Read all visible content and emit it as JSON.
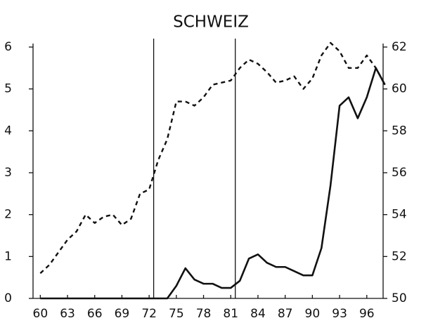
{
  "chart_data": {
    "type": "line",
    "title": "SCHWEIZ",
    "x": [
      60,
      61,
      62,
      63,
      64,
      65,
      66,
      67,
      68,
      69,
      70,
      71,
      72,
      73,
      74,
      75,
      76,
      77,
      78,
      79,
      80,
      81,
      82,
      83,
      84,
      85,
      86,
      87,
      88,
      89,
      90,
      91,
      92,
      93,
      94,
      95,
      96,
      97,
      98
    ],
    "xlim": [
      59.2,
      97.8
    ],
    "xticks": [
      60,
      63,
      66,
      69,
      72,
      75,
      78,
      81,
      84,
      87,
      90,
      93,
      96
    ],
    "ylim": [
      0,
      6
    ],
    "yticks": [
      0,
      1,
      2,
      3,
      4,
      5,
      6
    ],
    "y2lim": [
      50,
      62
    ],
    "y2ticks": [
      50,
      52,
      54,
      56,
      58,
      60,
      62
    ],
    "vlines": [
      72.5,
      81.5
    ],
    "series": [
      {
        "color": "#111111",
        "dash": false,
        "values": [
          0,
          0,
          0,
          0,
          0,
          0,
          0,
          0,
          0,
          0,
          0,
          0,
          0,
          0,
          0,
          0.3,
          0.72,
          0.45,
          0.35,
          0.35,
          0.25,
          0.25,
          0.42,
          0.95,
          1.05,
          0.85,
          0.75,
          0.75,
          0.65,
          0.55,
          0.55,
          1.2,
          2.7,
          4.6,
          4.8,
          4.3,
          4.8,
          5.5,
          5.1
        ]
      },
      {
        "color": "#111111",
        "dash": true,
        "axis": "y2",
        "values": [
          51.2,
          51.6,
          52.2,
          52.8,
          53.2,
          54.0,
          53.6,
          53.9,
          54.0,
          53.5,
          53.8,
          55.0,
          55.2,
          56.6,
          57.6,
          59.4,
          59.4,
          59.2,
          59.6,
          60.2,
          60.3,
          60.4,
          61.0,
          61.4,
          61.2,
          60.8,
          60.3,
          60.4,
          60.6,
          60.0,
          60.5,
          61.6,
          62.2,
          61.8,
          61.0,
          61.0,
          61.6,
          61.0,
          60.2
        ]
      }
    ]
  }
}
